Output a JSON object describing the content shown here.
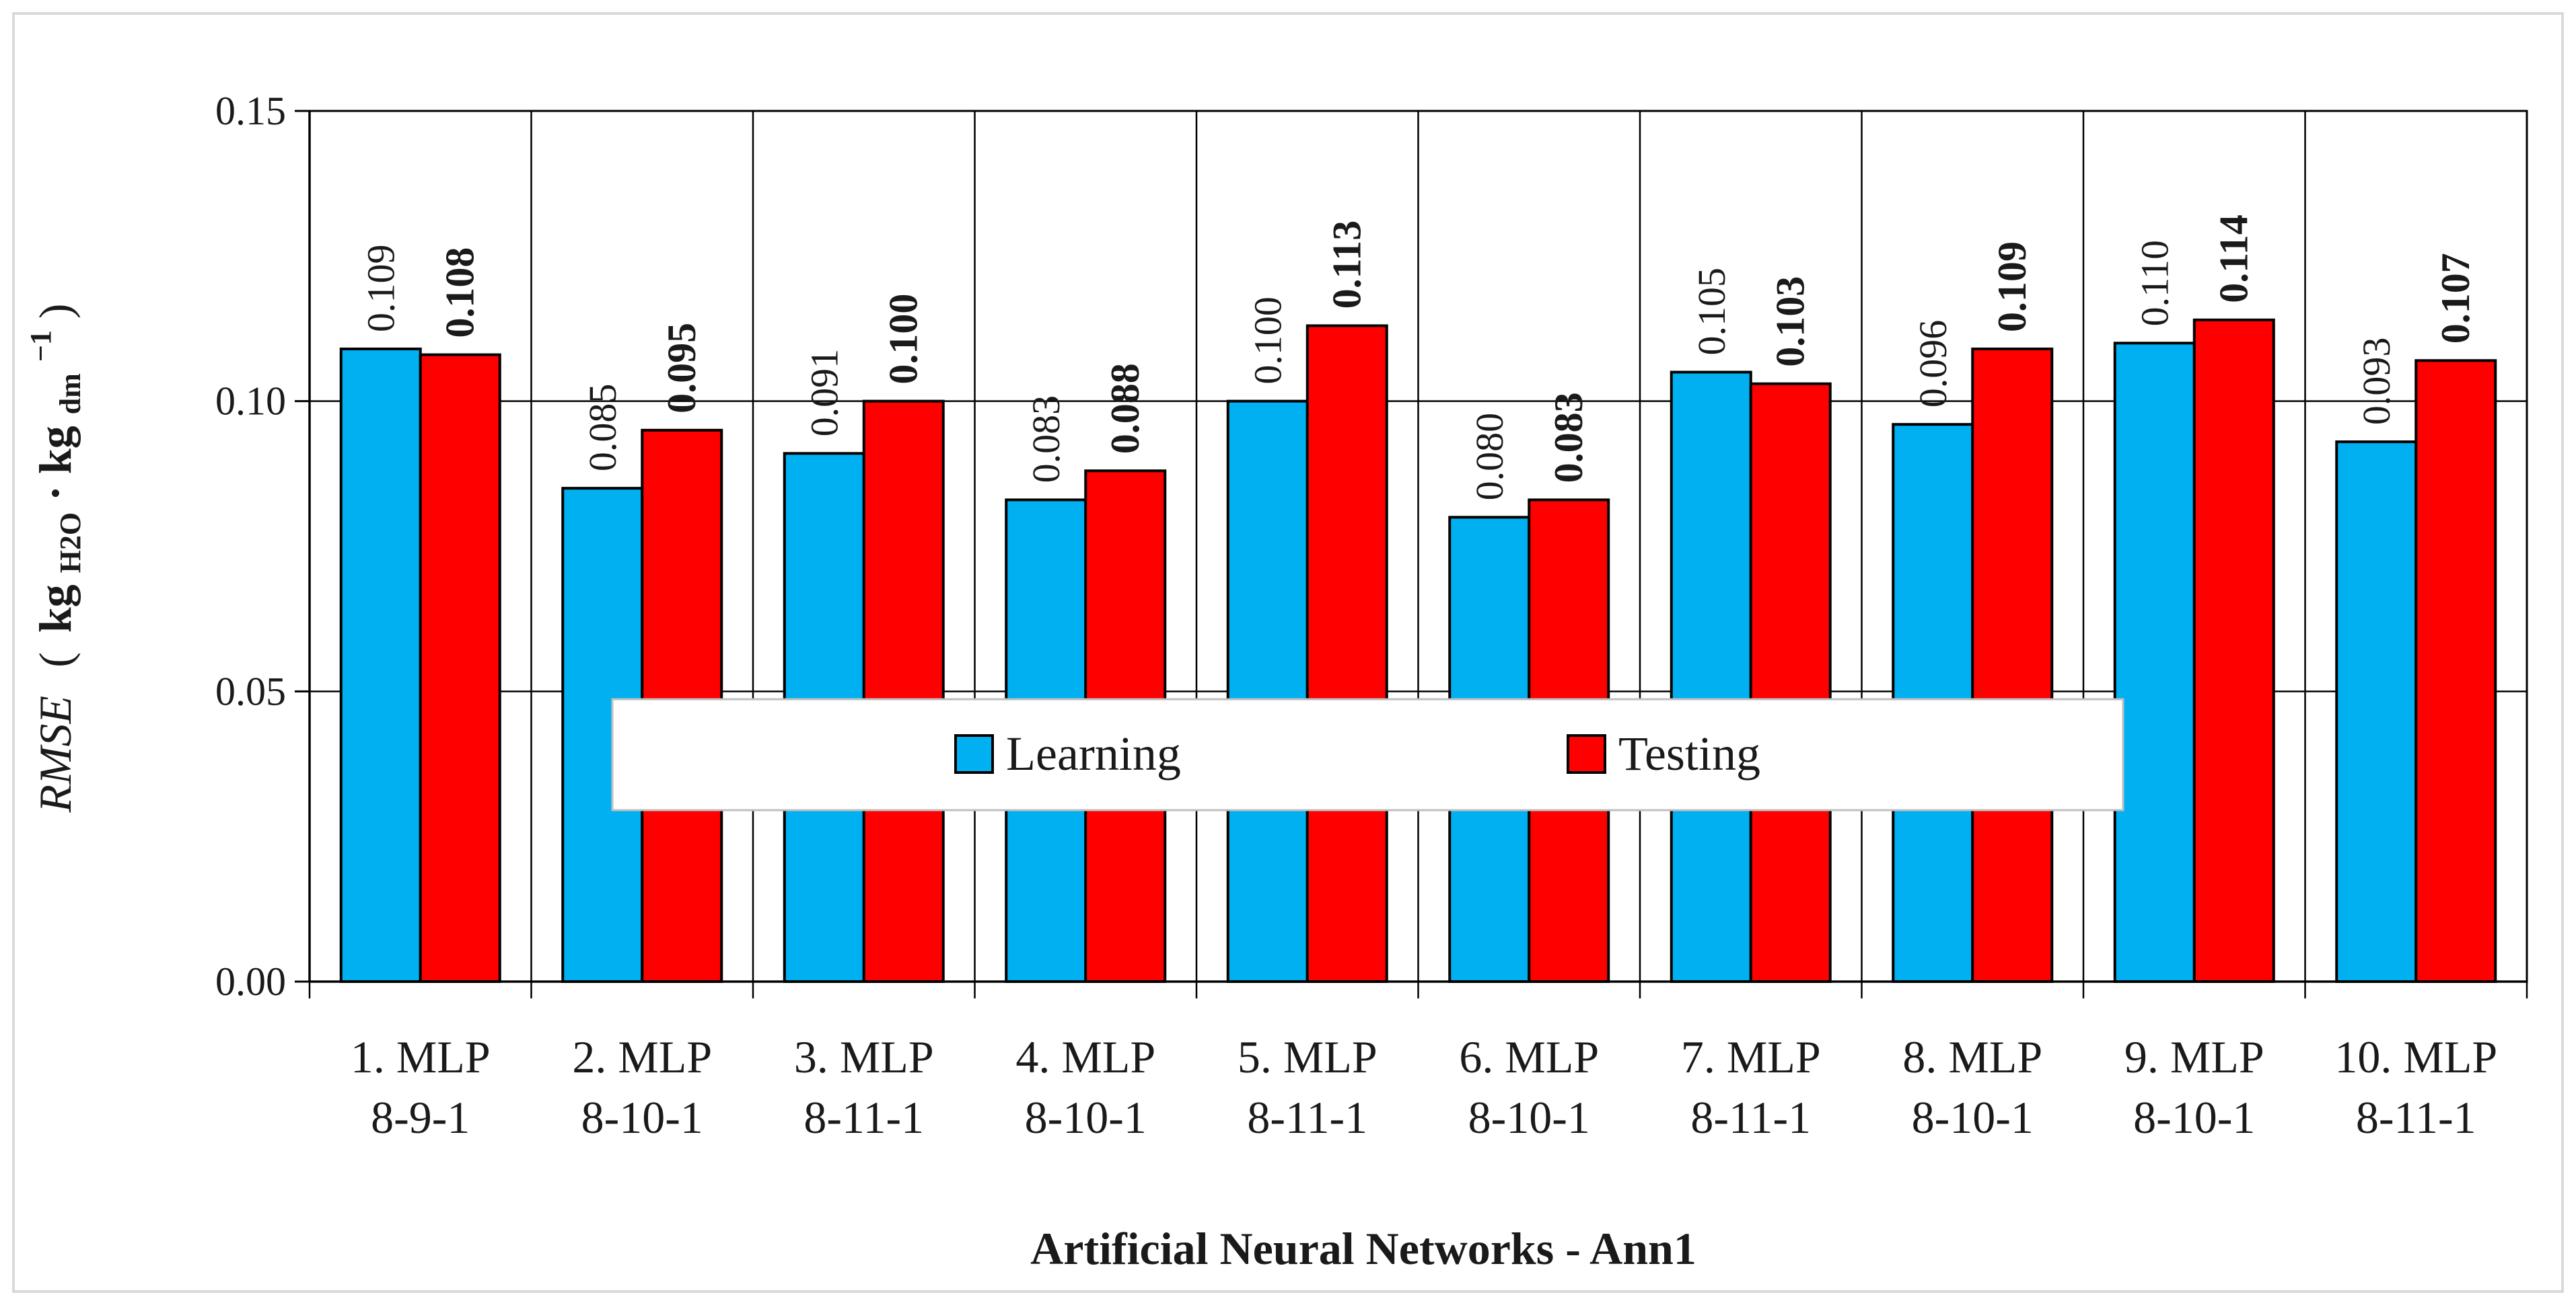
{
  "chart_data": {
    "type": "bar",
    "title": "",
    "xlabel": "Artificial Neural Networks - Ann1",
    "ylabel": "RMSE (kgH2O·kgdm−1)",
    "ylabel_parts": {
      "italic": "RMSE",
      "open": "(",
      "kg1": "kg",
      "sub1": "H2O",
      "dot": "·",
      "kg2": "kg",
      "sub2": "dm",
      "sup": "−1",
      "close": ")"
    },
    "ylim": [
      0,
      0.15
    ],
    "yticks": [
      "0.00",
      "0.05",
      "0.10",
      "0.15"
    ],
    "ytick_values": [
      0,
      0.05,
      0.1,
      0.15
    ],
    "categories": [
      {
        "line1": "1. MLP",
        "line2": "8-9-1"
      },
      {
        "line1": "2. MLP",
        "line2": "8-10-1"
      },
      {
        "line1": "3. MLP",
        "line2": "8-11-1"
      },
      {
        "line1": "4. MLP",
        "line2": "8-10-1"
      },
      {
        "line1": "5. MLP",
        "line2": "8-11-1"
      },
      {
        "line1": "6. MLP",
        "line2": "8-10-1"
      },
      {
        "line1": "7. MLP",
        "line2": "8-11-1"
      },
      {
        "line1": "8. MLP",
        "line2": "8-10-1"
      },
      {
        "line1": "9. MLP",
        "line2": "8-10-1"
      },
      {
        "line1": "10. MLP",
        "line2": "8-11-1"
      }
    ],
    "series": [
      {
        "name": "Learning",
        "color": "#00b0f0",
        "values": [
          0.109,
          0.085,
          0.091,
          0.083,
          0.1,
          0.08,
          0.105,
          0.096,
          0.11,
          0.093
        ],
        "labels": [
          "0.109",
          "0.085",
          "0.091",
          "0.083",
          "0.100",
          "0.080",
          "0.105",
          "0.096",
          "0.110",
          "0.093"
        ]
      },
      {
        "name": "Testing",
        "color": "#ff0000",
        "values": [
          0.108,
          0.095,
          0.1,
          0.088,
          0.113,
          0.083,
          0.103,
          0.109,
          0.114,
          0.107
        ],
        "labels": [
          "0.108",
          "0.095",
          "0.100",
          "0.088",
          "0.113",
          "0.083",
          "0.103",
          "0.109",
          "0.114",
          "0.107"
        ]
      }
    ],
    "grid": true,
    "legend": "center-bottom-inside"
  }
}
